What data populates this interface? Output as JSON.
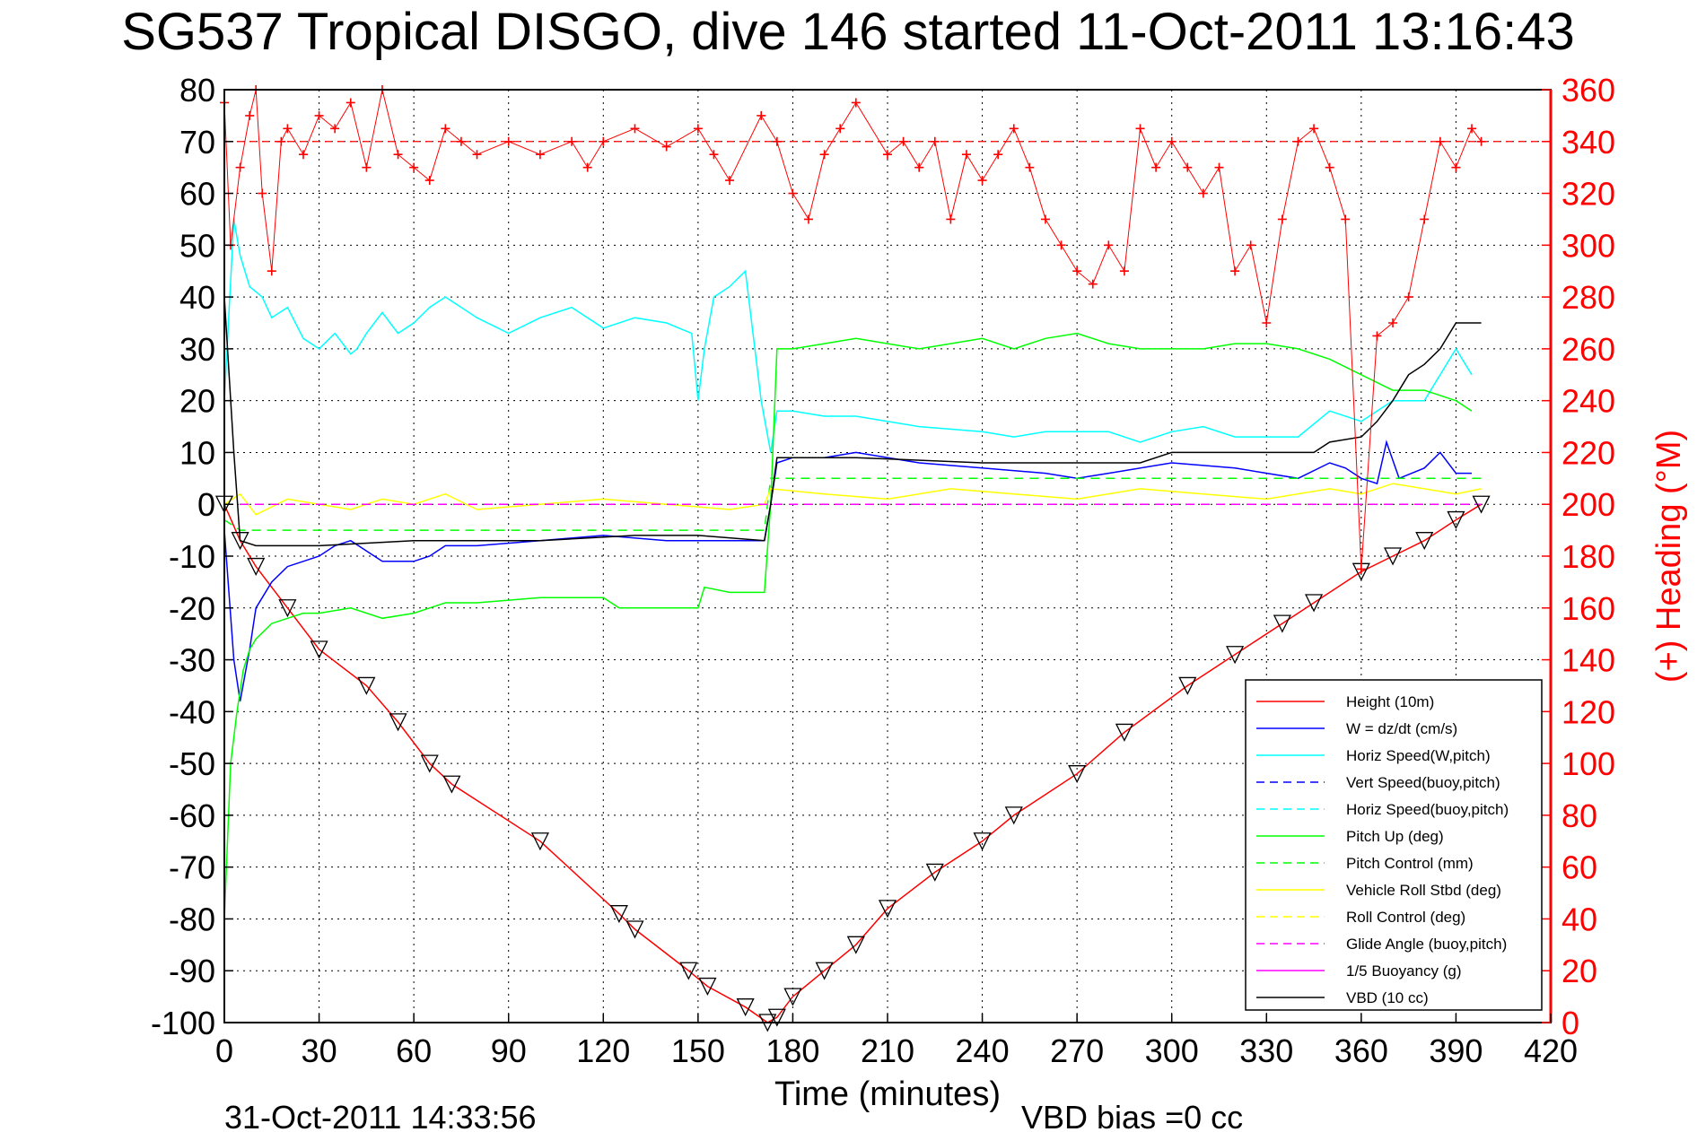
{
  "chart_data": {
    "type": "line",
    "title": "SG537 Tropical DISGO, dive 146 started 11-Oct-2011 13:16:43",
    "xlabel": "Time (minutes)",
    "ylabel": "",
    "y2label": "(+) Heading (°M)",
    "xlim": [
      0,
      420
    ],
    "ylim": [
      -100,
      80
    ],
    "y2lim": [
      0,
      360
    ],
    "xticks": [
      0,
      30,
      60,
      90,
      120,
      150,
      180,
      210,
      240,
      270,
      300,
      330,
      360,
      390,
      420
    ],
    "yticks": [
      80,
      70,
      60,
      50,
      40,
      30,
      20,
      10,
      0,
      -10,
      -20,
      -30,
      -40,
      -50,
      -60,
      -70,
      -80,
      -90,
      -100
    ],
    "y2ticks": [
      360,
      340,
      320,
      300,
      280,
      260,
      240,
      220,
      200,
      180,
      160,
      140,
      120,
      100,
      80,
      60,
      40,
      20,
      0
    ],
    "grid": true,
    "legend_position": "bottom-right",
    "footer_date": "31-Oct-2011 14:33:56",
    "footer_vbd": "VBD bias =0 cc",
    "colors": {
      "height": "#ff0000",
      "w": "#0000ff",
      "horiz": "#00ffff",
      "pitch": "#00ff00",
      "roll": "#ffff00",
      "glide": "#ff00ff",
      "vbd": "#000000",
      "heading": "#ff0000"
    },
    "legend": [
      {
        "label": "Height (10m)",
        "color": "#ff0000",
        "dash": false
      },
      {
        "label": "W = dz/dt (cm/s)",
        "color": "#0000ff",
        "dash": false
      },
      {
        "label": "Horiz Speed(W,pitch)",
        "color": "#00ffff",
        "dash": false
      },
      {
        "label": "Vert Speed(buoy,pitch)",
        "color": "#0000ff",
        "dash": true
      },
      {
        "label": "Horiz Speed(buoy,pitch)",
        "color": "#00ffff",
        "dash": true
      },
      {
        "label": "Pitch Up (deg)",
        "color": "#00ff00",
        "dash": false
      },
      {
        "label": "Pitch Control (mm)",
        "color": "#00ff00",
        "dash": true
      },
      {
        "label": "Vehicle Roll Stbd (deg)",
        "color": "#ffff00",
        "dash": false
      },
      {
        "label": "Roll Control (deg)",
        "color": "#ffff00",
        "dash": true
      },
      {
        "label": "Glide Angle (buoy,pitch)",
        "color": "#ff00ff",
        "dash": true
      },
      {
        "label": "1/5 Buoyancy (g)",
        "color": "#ff00ff",
        "dash": false
      },
      {
        "label": "VBD (10 cc)",
        "color": "#000000",
        "dash": false
      }
    ],
    "series": [
      {
        "name": "Height (10m)",
        "key": "height",
        "dash": false,
        "x": [
          0,
          5,
          10,
          20,
          30,
          45,
          55,
          65,
          72,
          100,
          125,
          130,
          147,
          153,
          165,
          172,
          175,
          180,
          190,
          200,
          210,
          225,
          240,
          250,
          270,
          285,
          305,
          320,
          335,
          345,
          360,
          370,
          380,
          390,
          398
        ],
        "y": [
          0,
          -7,
          -12,
          -20,
          -28,
          -35,
          -42,
          -50,
          -54,
          -65,
          -79,
          -82,
          -90,
          -93,
          -97,
          -100,
          -99,
          -95,
          -90,
          -85,
          -78,
          -71,
          -65,
          -60,
          -52,
          -44,
          -35,
          -29,
          -23,
          -19,
          -13,
          -10,
          -7,
          -3,
          0
        ]
      },
      {
        "name": "W = dz/dt (cm/s)",
        "key": "w",
        "dash": false,
        "x": [
          0,
          3,
          5,
          8,
          10,
          15,
          20,
          25,
          30,
          35,
          40,
          45,
          50,
          55,
          60,
          65,
          70,
          80,
          100,
          120,
          140,
          150,
          160,
          171,
          173,
          175,
          180,
          190,
          200,
          220,
          240,
          260,
          270,
          280,
          300,
          320,
          340,
          350,
          355,
          360,
          365,
          368,
          372,
          380,
          385,
          390,
          395
        ],
        "y": [
          -5,
          -30,
          -38,
          -28,
          -20,
          -15,
          -12,
          -11,
          -10,
          -8,
          -7,
          -9,
          -11,
          -11,
          -11,
          -10,
          -8,
          -8,
          -7,
          -6,
          -7,
          -7,
          -7,
          -7,
          0,
          8,
          9,
          9,
          10,
          8,
          7,
          6,
          5,
          6,
          8,
          7,
          5,
          8,
          7,
          5,
          4,
          12,
          5,
          7,
          10,
          6,
          6
        ]
      },
      {
        "name": "Horiz Speed(W,pitch)",
        "key": "horiz",
        "dash": false,
        "x": [
          0,
          3,
          5,
          8,
          12,
          15,
          20,
          25,
          30,
          35,
          40,
          42,
          45,
          50,
          55,
          60,
          65,
          70,
          80,
          90,
          100,
          110,
          120,
          130,
          140,
          148,
          150,
          152,
          155,
          160,
          165,
          170,
          173,
          175,
          180,
          190,
          200,
          220,
          240,
          250,
          260,
          270,
          280,
          290,
          300,
          310,
          320,
          330,
          340,
          350,
          360,
          370,
          380,
          390,
          395
        ],
        "y": [
          20,
          55,
          48,
          42,
          40,
          36,
          38,
          32,
          30,
          33,
          29,
          30,
          33,
          37,
          33,
          35,
          38,
          40,
          36,
          33,
          36,
          38,
          34,
          36,
          35,
          33,
          20,
          30,
          40,
          42,
          45,
          20,
          10,
          18,
          18,
          17,
          17,
          15,
          14,
          13,
          14,
          14,
          14,
          12,
          14,
          15,
          13,
          13,
          13,
          18,
          16,
          20,
          20,
          30,
          25
        ]
      },
      {
        "name": "Pitch Up (deg)",
        "key": "pitch",
        "dash": false,
        "x": [
          0,
          2,
          4,
          6,
          8,
          10,
          15,
          20,
          25,
          30,
          40,
          50,
          60,
          65,
          70,
          80,
          100,
          120,
          125,
          130,
          150,
          152,
          160,
          171,
          173,
          175,
          180,
          190,
          200,
          210,
          220,
          230,
          240,
          250,
          260,
          270,
          280,
          290,
          300,
          310,
          320,
          330,
          340,
          350,
          360,
          370,
          380,
          390,
          395
        ],
        "y": [
          -80,
          -50,
          -40,
          -32,
          -28,
          -26,
          -23,
          -22,
          -21,
          -21,
          -20,
          -22,
          -21,
          -20,
          -19,
          -19,
          -18,
          -18,
          -20,
          -20,
          -20,
          -16,
          -17,
          -17,
          0,
          30,
          30,
          31,
          32,
          31,
          30,
          31,
          32,
          30,
          32,
          33,
          31,
          30,
          30,
          30,
          31,
          31,
          30,
          28,
          25,
          22,
          22,
          20,
          18
        ]
      },
      {
        "name": "Pitch Control (mm)",
        "key": "pitch",
        "dash": true,
        "x": [
          0,
          5,
          10,
          40,
          60,
          100,
          130,
          150,
          171,
          173,
          200,
          240,
          280,
          310,
          330,
          360,
          398
        ],
        "y": [
          -3,
          -5,
          -5,
          -5,
          -5,
          -5,
          -5,
          -5,
          -5,
          5,
          5,
          5,
          5,
          5,
          5,
          5,
          5
        ]
      },
      {
        "name": "Vehicle Roll Stbd (deg)",
        "key": "roll",
        "dash": false,
        "x": [
          0,
          5,
          10,
          20,
          30,
          40,
          50,
          60,
          70,
          80,
          100,
          120,
          140,
          160,
          171,
          173,
          190,
          210,
          230,
          250,
          270,
          290,
          310,
          330,
          350,
          360,
          370,
          380,
          390,
          398
        ],
        "y": [
          0,
          2,
          -2,
          1,
          0,
          -1,
          1,
          0,
          2,
          -1,
          0,
          1,
          0,
          -1,
          0,
          3,
          2,
          1,
          3,
          2,
          1,
          3,
          2,
          1,
          3,
          2,
          4,
          3,
          2,
          3
        ]
      },
      {
        "name": "Roll Control (deg)",
        "key": "roll",
        "dash": true,
        "x": [
          0,
          10,
          30,
          60,
          90,
          120,
          150,
          173,
          200,
          230,
          260,
          290,
          320,
          350,
          380,
          398
        ],
        "y": [
          0,
          0,
          0,
          0,
          0,
          0,
          0,
          0,
          0,
          0,
          0,
          0,
          0,
          0,
          0,
          0
        ]
      },
      {
        "name": "Glide Angle (buoy,pitch)",
        "key": "glide",
        "dash": true,
        "x": [
          0,
          398
        ],
        "y": [
          0,
          0
        ]
      },
      {
        "name": "VBD (10 cc)",
        "key": "vbd",
        "dash": false,
        "x": [
          0,
          3,
          5,
          10,
          30,
          60,
          100,
          130,
          150,
          171,
          173,
          175,
          200,
          240,
          270,
          290,
          300,
          320,
          345,
          350,
          360,
          365,
          370,
          375,
          380,
          385,
          390,
          398
        ],
        "y": [
          40,
          10,
          -7,
          -8,
          -8,
          -7,
          -7,
          -6,
          -6,
          -7,
          0,
          9,
          9,
          8,
          8,
          8,
          10,
          10,
          10,
          12,
          13,
          16,
          20,
          25,
          27,
          30,
          35,
          35
        ]
      }
    ],
    "heading": {
      "name": "(+) Heading (°M)",
      "axis": "right",
      "x": [
        0,
        2,
        5,
        8,
        10,
        12,
        15,
        18,
        20,
        25,
        30,
        35,
        40,
        45,
        50,
        55,
        60,
        65,
        70,
        75,
        80,
        90,
        100,
        110,
        115,
        120,
        130,
        140,
        150,
        155,
        160,
        170,
        175,
        180,
        185,
        190,
        195,
        200,
        210,
        215,
        220,
        225,
        230,
        235,
        240,
        245,
        250,
        255,
        260,
        265,
        270,
        275,
        280,
        285,
        290,
        295,
        300,
        305,
        310,
        315,
        320,
        325,
        330,
        335,
        340,
        345,
        350,
        355,
        360,
        365,
        370,
        375,
        380,
        385,
        390,
        395,
        398
      ],
      "y": [
        355,
        300,
        330,
        350,
        360,
        320,
        290,
        340,
        345,
        335,
        350,
        345,
        355,
        330,
        360,
        335,
        330,
        325,
        345,
        340,
        335,
        340,
        335,
        340,
        330,
        340,
        345,
        338,
        345,
        335,
        325,
        350,
        340,
        320,
        310,
        335,
        345,
        355,
        335,
        340,
        330,
        340,
        310,
        335,
        325,
        335,
        345,
        330,
        310,
        300,
        290,
        285,
        300,
        290,
        345,
        330,
        340,
        330,
        320,
        330,
        290,
        300,
        270,
        310,
        340,
        345,
        330,
        310,
        175,
        265,
        270,
        280,
        310,
        340,
        330,
        345,
        340
      ]
    }
  }
}
